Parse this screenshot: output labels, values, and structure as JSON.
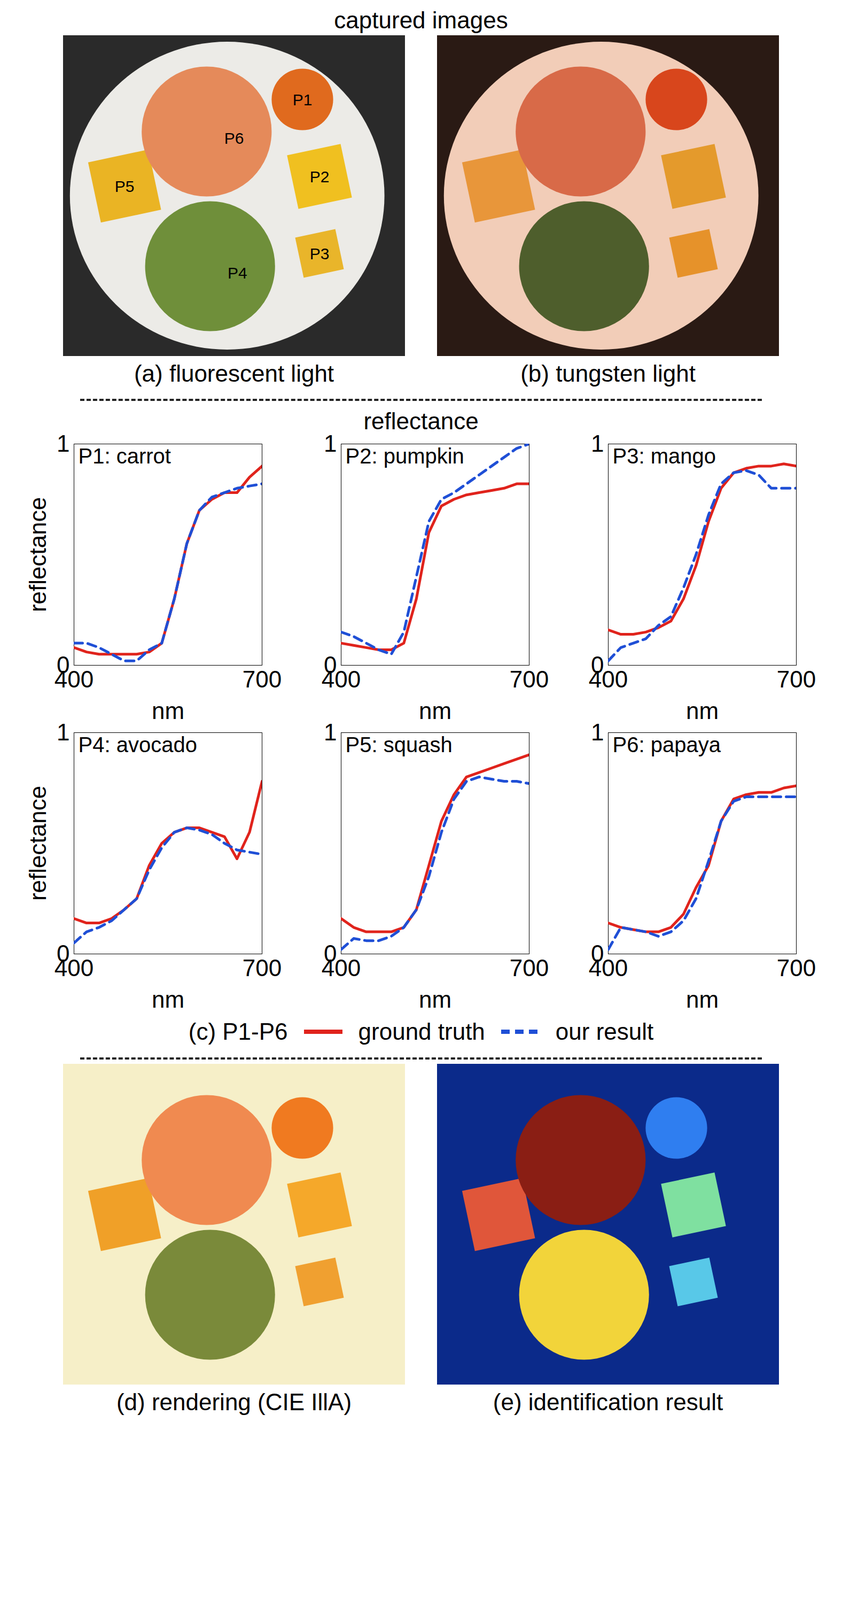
{
  "headers": {
    "top": "captured images",
    "middle": "reflectance"
  },
  "photo_labels": [
    "P1",
    "P2",
    "P3",
    "P4",
    "P5",
    "P6"
  ],
  "captions": {
    "a": "(a) fluorescent light",
    "b": "(b) tungsten light",
    "c": "(c) P1-P6",
    "d": "(d) rendering (CIE IllA)",
    "e": "(e) identification result"
  },
  "chart_data": [
    {
      "type": "line",
      "title": "P1: carrot",
      "xlabel": "nm",
      "ylabel": "reflectance",
      "x": [
        400,
        420,
        440,
        460,
        480,
        500,
        520,
        540,
        560,
        580,
        600,
        620,
        640,
        660,
        680,
        700
      ],
      "xlim": [
        400,
        700
      ],
      "ylim": [
        0,
        1
      ],
      "xticks": [
        400,
        700
      ],
      "yticks": [
        0,
        1
      ],
      "series": [
        {
          "name": "ground truth",
          "color": "#e0231c",
          "line_style": "solid",
          "values": [
            0.08,
            0.06,
            0.05,
            0.05,
            0.05,
            0.05,
            0.06,
            0.1,
            0.3,
            0.55,
            0.7,
            0.75,
            0.78,
            0.78,
            0.85,
            0.9
          ]
        },
        {
          "name": "our result",
          "color": "#1f4fd6",
          "line_style": "dashed",
          "values": [
            0.1,
            0.1,
            0.08,
            0.05,
            0.02,
            0.02,
            0.07,
            0.1,
            0.3,
            0.55,
            0.7,
            0.76,
            0.78,
            0.8,
            0.81,
            0.82
          ]
        }
      ]
    },
    {
      "type": "line",
      "title": "P2: pumpkin",
      "xlabel": "nm",
      "x": [
        400,
        420,
        440,
        460,
        480,
        500,
        520,
        540,
        560,
        580,
        600,
        620,
        640,
        660,
        680,
        700
      ],
      "xlim": [
        400,
        700
      ],
      "ylim": [
        0,
        1
      ],
      "xticks": [
        400,
        700
      ],
      "yticks": [
        0,
        1
      ],
      "series": [
        {
          "name": "ground truth",
          "color": "#e0231c",
          "line_style": "solid",
          "values": [
            0.1,
            0.09,
            0.08,
            0.07,
            0.07,
            0.1,
            0.3,
            0.6,
            0.72,
            0.75,
            0.77,
            0.78,
            0.79,
            0.8,
            0.82,
            0.82
          ]
        },
        {
          "name": "our result",
          "color": "#1f4fd6",
          "line_style": "dashed",
          "values": [
            0.15,
            0.13,
            0.1,
            0.07,
            0.05,
            0.15,
            0.4,
            0.65,
            0.75,
            0.78,
            0.82,
            0.86,
            0.9,
            0.94,
            0.98,
            1.0
          ]
        }
      ]
    },
    {
      "type": "line",
      "title": "P3: mango",
      "xlabel": "nm",
      "x": [
        400,
        420,
        440,
        460,
        480,
        500,
        520,
        540,
        560,
        580,
        600,
        620,
        640,
        660,
        680,
        700
      ],
      "xlim": [
        400,
        700
      ],
      "ylim": [
        0,
        1
      ],
      "xticks": [
        400,
        700
      ],
      "yticks": [
        0,
        1
      ],
      "series": [
        {
          "name": "ground truth",
          "color": "#e0231c",
          "line_style": "solid",
          "values": [
            0.16,
            0.14,
            0.14,
            0.15,
            0.17,
            0.2,
            0.3,
            0.45,
            0.65,
            0.8,
            0.87,
            0.89,
            0.9,
            0.9,
            0.91,
            0.9
          ]
        },
        {
          "name": "our result",
          "color": "#1f4fd6",
          "line_style": "dashed",
          "values": [
            0.02,
            0.08,
            0.1,
            0.12,
            0.18,
            0.22,
            0.35,
            0.5,
            0.68,
            0.82,
            0.87,
            0.88,
            0.86,
            0.8,
            0.8,
            0.8
          ]
        }
      ]
    },
    {
      "type": "line",
      "title": "P4: avocado",
      "xlabel": "nm",
      "ylabel": "reflectance",
      "x": [
        400,
        420,
        440,
        460,
        480,
        500,
        520,
        540,
        560,
        580,
        600,
        620,
        640,
        660,
        680,
        700
      ],
      "xlim": [
        400,
        700
      ],
      "ylim": [
        0,
        1
      ],
      "xticks": [
        400,
        700
      ],
      "yticks": [
        0,
        1
      ],
      "series": [
        {
          "name": "ground truth",
          "color": "#e0231c",
          "line_style": "solid",
          "values": [
            0.16,
            0.14,
            0.14,
            0.16,
            0.2,
            0.25,
            0.4,
            0.5,
            0.55,
            0.57,
            0.57,
            0.55,
            0.53,
            0.43,
            0.55,
            0.78
          ]
        },
        {
          "name": "our result",
          "color": "#1f4fd6",
          "line_style": "dashed",
          "values": [
            0.05,
            0.1,
            0.12,
            0.15,
            0.2,
            0.25,
            0.38,
            0.48,
            0.55,
            0.57,
            0.56,
            0.54,
            0.5,
            0.47,
            0.46,
            0.45
          ]
        }
      ]
    },
    {
      "type": "line",
      "title": "P5: squash",
      "xlabel": "nm",
      "x": [
        400,
        420,
        440,
        460,
        480,
        500,
        520,
        540,
        560,
        580,
        600,
        620,
        640,
        660,
        680,
        700
      ],
      "xlim": [
        400,
        700
      ],
      "ylim": [
        0,
        1
      ],
      "xticks": [
        400,
        700
      ],
      "yticks": [
        0,
        1
      ],
      "series": [
        {
          "name": "ground truth",
          "color": "#e0231c",
          "line_style": "solid",
          "values": [
            0.16,
            0.12,
            0.1,
            0.1,
            0.1,
            0.12,
            0.2,
            0.4,
            0.6,
            0.72,
            0.8,
            0.82,
            0.84,
            0.86,
            0.88,
            0.9
          ]
        },
        {
          "name": "our result",
          "color": "#1f4fd6",
          "line_style": "dashed",
          "values": [
            0.02,
            0.07,
            0.06,
            0.06,
            0.08,
            0.12,
            0.2,
            0.35,
            0.55,
            0.7,
            0.78,
            0.8,
            0.79,
            0.78,
            0.78,
            0.77
          ]
        }
      ]
    },
    {
      "type": "line",
      "title": "P6: papaya",
      "xlabel": "nm",
      "x": [
        400,
        420,
        440,
        460,
        480,
        500,
        520,
        540,
        560,
        580,
        600,
        620,
        640,
        660,
        680,
        700
      ],
      "xlim": [
        400,
        700
      ],
      "ylim": [
        0,
        1
      ],
      "xticks": [
        400,
        700
      ],
      "yticks": [
        0,
        1
      ],
      "series": [
        {
          "name": "ground truth",
          "color": "#e0231c",
          "line_style": "solid",
          "values": [
            0.14,
            0.12,
            0.11,
            0.1,
            0.1,
            0.12,
            0.18,
            0.3,
            0.4,
            0.6,
            0.7,
            0.72,
            0.73,
            0.73,
            0.75,
            0.76
          ]
        },
        {
          "name": "our result",
          "color": "#1f4fd6",
          "line_style": "dashed",
          "values": [
            0.02,
            0.12,
            0.11,
            0.1,
            0.08,
            0.1,
            0.15,
            0.25,
            0.42,
            0.6,
            0.69,
            0.71,
            0.71,
            0.71,
            0.71,
            0.71
          ]
        }
      ]
    }
  ]
}
